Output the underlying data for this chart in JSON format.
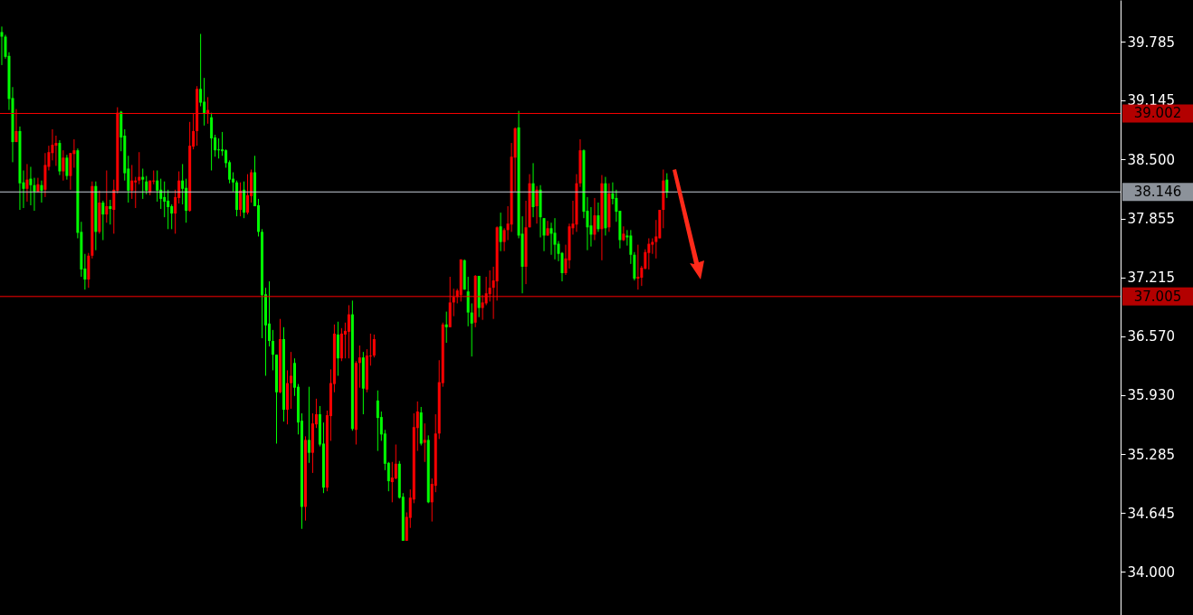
{
  "chart_data": {
    "type": "candlestick",
    "categories": [
      null,
      null,
      null,
      null,
      null,
      null,
      null,
      null,
      null,
      null,
      null,
      null,
      null,
      null,
      null,
      null,
      null,
      null,
      null,
      null,
      null,
      null,
      null,
      null,
      null,
      null,
      null,
      null,
      null,
      null,
      null,
      null,
      null,
      null,
      null,
      null,
      null,
      null,
      null,
      null,
      null,
      null,
      null,
      null,
      null,
      null,
      null,
      null,
      null,
      null,
      null,
      null,
      null,
      null,
      null,
      null,
      null,
      null,
      null,
      null,
      null,
      null,
      null,
      null,
      null,
      null,
      null,
      null,
      null,
      null,
      null,
      null,
      null,
      null,
      null,
      null,
      null,
      null,
      null,
      null,
      null,
      null,
      null,
      null,
      null,
      null,
      null,
      null,
      null,
      null,
      null,
      null,
      null,
      null,
      null,
      null,
      null,
      null,
      null,
      null,
      null,
      null,
      null,
      null,
      null,
      null,
      null,
      null,
      null,
      null,
      null,
      null,
      null,
      null,
      null,
      null,
      null,
      null,
      null,
      null,
      null,
      null,
      null,
      null,
      null,
      null,
      null,
      null,
      null,
      null,
      null,
      null,
      null,
      null,
      null,
      null,
      null,
      null,
      null,
      null,
      null,
      null,
      null,
      null,
      null,
      null,
      null,
      null,
      null,
      null,
      null,
      null,
      null,
      null,
      null,
      null,
      null,
      null,
      null,
      null,
      null,
      null,
      null,
      null,
      null,
      null,
      null,
      null,
      null,
      null,
      null,
      null,
      null,
      null,
      null,
      null,
      null,
      null,
      null,
      null,
      null,
      null,
      null,
      null,
      null,
      null,
      null,
      null,
      null,
      null,
      null,
      null,
      null,
      null,
      null,
      null,
      null,
      null,
      null,
      null,
      null,
      null,
      null,
      null,
      null,
      null,
      null,
      null,
      null,
      null,
      null,
      null,
      null,
      null,
      null,
      null,
      null,
      null,
      null,
      null,
      null,
      null,
      null,
      null,
      null,
      null,
      null,
      null,
      null,
      null,
      null,
      null,
      null,
      null,
      null,
      null,
      null,
      null,
      null,
      null,
      null,
      null,
      null,
      null,
      null,
      null,
      null,
      null,
      null,
      null,
      null,
      null,
      null,
      null,
      null,
      null,
      null,
      null,
      null,
      null,
      null,
      null,
      null,
      null,
      null,
      null,
      null,
      null,
      null,
      null,
      null,
      null,
      null,
      null,
      null,
      null,
      null,
      null,
      null,
      null,
      null,
      null,
      null,
      null,
      null,
      null,
      null,
      null,
      null,
      null,
      null,
      null,
      null,
      null,
      null,
      null,
      null,
      null,
      null,
      null,
      null,
      null,
      null,
      null,
      null,
      null,
      null,
      null,
      null,
      null
    ],
    "ohlc": [
      [
        39.89,
        39.95,
        39.53,
        39.84
      ],
      [
        39.84,
        39.86,
        39.6,
        39.62
      ],
      [
        39.63,
        39.67,
        39.04,
        39.16
      ],
      [
        39.17,
        39.29,
        38.47,
        38.69
      ],
      [
        38.69,
        39.05,
        38.69,
        38.81
      ],
      [
        38.81,
        38.86,
        37.95,
        38.24
      ],
      [
        38.25,
        38.38,
        37.97,
        38.18
      ],
      [
        38.18,
        38.45,
        38.04,
        38.28
      ],
      [
        38.29,
        38.42,
        38.0,
        38.22
      ],
      [
        38.22,
        38.3,
        37.94,
        38.15
      ],
      [
        38.15,
        38.3,
        38.14,
        38.23
      ],
      [
        38.22,
        38.27,
        38.03,
        38.16
      ],
      [
        38.17,
        38.57,
        38.09,
        38.44
      ],
      [
        38.42,
        38.65,
        38.38,
        38.58
      ],
      [
        38.57,
        38.83,
        38.49,
        38.66
      ],
      [
        38.65,
        38.76,
        38.43,
        38.68
      ],
      [
        38.68,
        38.71,
        38.33,
        38.37
      ],
      [
        38.37,
        38.6,
        38.27,
        38.52
      ],
      [
        38.52,
        38.55,
        38.28,
        38.32
      ],
      [
        38.32,
        38.57,
        38.17,
        38.57
      ],
      [
        38.56,
        38.72,
        38.41,
        38.6
      ],
      [
        38.6,
        38.62,
        37.64,
        37.7
      ],
      [
        37.71,
        37.82,
        37.22,
        37.3
      ],
      [
        37.31,
        37.47,
        37.08,
        37.19
      ],
      [
        37.19,
        37.48,
        37.1,
        37.45
      ],
      [
        37.45,
        38.26,
        37.42,
        38.21
      ],
      [
        38.21,
        38.26,
        37.51,
        37.71
      ],
      [
        37.71,
        38.16,
        37.69,
        38.03
      ],
      [
        38.03,
        38.05,
        37.62,
        37.9
      ],
      [
        37.9,
        38.38,
        37.81,
        37.99
      ],
      [
        37.99,
        38.06,
        37.79,
        37.96
      ],
      [
        37.95,
        38.28,
        37.69,
        38.17
      ],
      [
        38.16,
        39.07,
        38.13,
        39.01
      ],
      [
        39.02,
        39.03,
        38.59,
        38.74
      ],
      [
        38.76,
        38.83,
        38.27,
        38.35
      ],
      [
        38.4,
        38.54,
        38.03,
        38.16
      ],
      [
        38.16,
        38.44,
        38.07,
        38.27
      ],
      [
        38.25,
        38.31,
        37.97,
        38.27
      ],
      [
        38.27,
        38.58,
        38.23,
        38.31
      ],
      [
        38.31,
        38.4,
        38.07,
        38.28
      ],
      [
        38.26,
        38.32,
        38.12,
        38.16
      ],
      [
        38.14,
        38.27,
        38.11,
        38.27
      ],
      [
        38.26,
        38.38,
        38.23,
        38.27
      ],
      [
        38.27,
        38.38,
        38.04,
        38.16
      ],
      [
        38.17,
        38.29,
        37.96,
        38.07
      ],
      [
        38.09,
        38.26,
        37.87,
        38.04
      ],
      [
        38.05,
        38.17,
        37.74,
        37.98
      ],
      [
        37.99,
        38.01,
        37.74,
        37.91
      ],
      [
        37.91,
        38.17,
        37.69,
        38.09
      ],
      [
        38.08,
        38.37,
        38.02,
        38.27
      ],
      [
        38.27,
        38.45,
        38.01,
        38.18
      ],
      [
        38.19,
        38.29,
        37.81,
        37.94
      ],
      [
        37.94,
        38.91,
        37.93,
        38.65
      ],
      [
        38.64,
        39.0,
        38.61,
        38.81
      ],
      [
        38.81,
        39.3,
        38.65,
        39.27
      ],
      [
        39.27,
        39.87,
        39.08,
        39.12
      ],
      [
        39.13,
        39.39,
        38.87,
        39.0
      ],
      [
        39.0,
        39.18,
        38.89,
        39.04
      ],
      [
        38.96,
        39.01,
        38.38,
        38.73
      ],
      [
        38.74,
        38.77,
        38.53,
        38.6
      ],
      [
        38.61,
        38.73,
        38.51,
        38.6
      ],
      [
        38.61,
        38.8,
        38.54,
        38.59
      ],
      [
        38.6,
        38.61,
        38.41,
        38.46
      ],
      [
        38.47,
        38.49,
        38.24,
        38.28
      ],
      [
        38.29,
        38.36,
        38.15,
        38.25
      ],
      [
        38.25,
        38.27,
        37.88,
        37.95
      ],
      [
        37.95,
        38.25,
        37.88,
        38.16
      ],
      [
        38.17,
        38.26,
        37.86,
        37.92
      ],
      [
        37.92,
        38.34,
        37.9,
        38.11
      ],
      [
        38.1,
        38.39,
        38.03,
        38.36
      ],
      [
        38.36,
        38.54,
        37.99,
        37.99
      ],
      [
        38.0,
        38.07,
        37.66,
        37.71
      ],
      [
        37.71,
        37.74,
        36.55,
        37.02
      ],
      [
        37.03,
        37.1,
        36.14,
        36.69
      ],
      [
        36.71,
        37.17,
        36.46,
        36.52
      ],
      [
        36.52,
        36.64,
        36.2,
        36.37
      ],
      [
        36.37,
        36.37,
        35.4,
        35.96
      ],
      [
        35.96,
        36.76,
        35.95,
        36.54
      ],
      [
        36.54,
        36.67,
        35.64,
        35.77
      ],
      [
        35.77,
        36.2,
        35.61,
        36.06
      ],
      [
        36.06,
        36.4,
        35.78,
        36.14
      ],
      [
        36.28,
        36.33,
        35.92,
        36.01
      ],
      [
        36.02,
        36.05,
        35.5,
        35.63
      ],
      [
        35.65,
        35.73,
        34.47,
        34.71
      ],
      [
        34.71,
        35.48,
        34.56,
        35.44
      ],
      [
        35.44,
        36.02,
        35.19,
        35.3
      ],
      [
        35.3,
        35.73,
        35.08,
        35.62
      ],
      [
        35.61,
        35.89,
        35.57,
        35.72
      ],
      [
        35.72,
        35.81,
        35.37,
        35.39
      ],
      [
        35.4,
        35.63,
        34.86,
        34.92
      ],
      [
        34.92,
        35.76,
        34.88,
        35.71
      ],
      [
        35.7,
        36.21,
        35.43,
        36.06
      ],
      [
        36.05,
        36.7,
        35.96,
        36.6
      ],
      [
        36.59,
        36.73,
        36.14,
        36.33
      ],
      [
        36.33,
        36.66,
        36.3,
        36.6
      ],
      [
        36.59,
        36.72,
        36.33,
        36.63
      ],
      [
        36.62,
        36.91,
        36.33,
        36.81
      ],
      [
        36.81,
        36.96,
        35.54,
        35.56
      ],
      [
        35.55,
        36.3,
        35.39,
        36.28
      ],
      [
        36.28,
        36.47,
        36.01,
        36.34
      ],
      [
        36.34,
        36.4,
        35.72,
        36.0
      ],
      [
        35.99,
        36.43,
        35.96,
        36.36
      ],
      [
        36.35,
        36.6,
        36.25,
        36.36
      ],
      [
        36.36,
        36.59,
        36.34,
        36.54
      ],
      [
        35.87,
        35.98,
        35.32,
        35.68
      ],
      [
        35.69,
        35.75,
        35.43,
        35.5
      ],
      [
        35.51,
        35.55,
        35.11,
        35.18
      ],
      [
        35.19,
        35.2,
        34.88,
        34.99
      ],
      [
        34.98,
        35.2,
        34.76,
        35.03
      ],
      [
        35.02,
        35.39,
        35.01,
        35.18
      ],
      [
        35.18,
        35.21,
        34.8,
        34.81
      ],
      [
        34.82,
        34.86,
        34.34,
        34.34
      ],
      [
        34.34,
        34.65,
        34.34,
        34.6
      ],
      [
        34.59,
        34.9,
        34.48,
        34.81
      ],
      [
        34.79,
        35.73,
        34.75,
        35.58
      ],
      [
        35.57,
        35.86,
        35.32,
        35.75
      ],
      [
        35.74,
        35.8,
        35.38,
        35.4
      ],
      [
        35.41,
        35.62,
        35.2,
        35.44
      ],
      [
        35.44,
        35.49,
        34.75,
        34.76
      ],
      [
        34.76,
        35.02,
        34.55,
        34.96
      ],
      [
        34.94,
        35.72,
        34.87,
        35.51
      ],
      [
        35.51,
        36.31,
        35.45,
        36.07
      ],
      [
        36.06,
        36.72,
        36.02,
        36.7
      ],
      [
        36.7,
        36.84,
        36.5,
        36.67
      ],
      [
        36.67,
        37.22,
        36.67,
        36.94
      ],
      [
        36.94,
        37.09,
        36.79,
        37.0
      ],
      [
        37.0,
        37.09,
        36.93,
        37.07
      ],
      [
        37.02,
        37.41,
        36.95,
        37.41
      ],
      [
        37.4,
        37.41,
        37.08,
        37.08
      ],
      [
        37.06,
        37.22,
        36.68,
        36.83
      ],
      [
        36.83,
        36.93,
        36.35,
        36.71
      ],
      [
        36.72,
        37.24,
        36.67,
        37.23
      ],
      [
        37.23,
        37.23,
        36.78,
        36.88
      ],
      [
        36.88,
        37.02,
        36.75,
        36.94
      ],
      [
        36.93,
        37.22,
        36.91,
        37.04
      ],
      [
        37.03,
        37.29,
        36.95,
        37.1
      ],
      [
        37.1,
        37.33,
        36.76,
        37.18
      ],
      [
        37.17,
        37.77,
        36.96,
        37.76
      ],
      [
        37.77,
        37.92,
        37.5,
        37.6
      ],
      [
        37.6,
        37.75,
        37.5,
        37.73
      ],
      [
        37.73,
        37.99,
        37.62,
        37.8
      ],
      [
        37.79,
        38.68,
        37.71,
        38.53
      ],
      [
        38.52,
        38.85,
        38.15,
        38.84
      ],
      [
        38.85,
        39.03,
        37.64,
        37.67
      ],
      [
        37.69,
        37.88,
        37.04,
        37.33
      ],
      [
        37.33,
        38.05,
        37.14,
        37.76
      ],
      [
        37.76,
        38.34,
        37.76,
        38.24
      ],
      [
        38.24,
        38.46,
        37.87,
        37.98
      ],
      [
        37.99,
        38.21,
        37.8,
        38.17
      ],
      [
        38.17,
        38.22,
        37.65,
        37.87
      ],
      [
        37.86,
        37.86,
        37.5,
        37.67
      ],
      [
        37.67,
        37.83,
        37.67,
        37.75
      ],
      [
        37.75,
        37.81,
        37.46,
        37.69
      ],
      [
        37.7,
        37.86,
        37.41,
        37.57
      ],
      [
        37.58,
        37.61,
        37.39,
        37.47
      ],
      [
        37.48,
        37.49,
        37.17,
        37.26
      ],
      [
        37.26,
        37.57,
        37.24,
        37.42
      ],
      [
        37.4,
        37.8,
        37.31,
        37.77
      ],
      [
        37.75,
        38.05,
        37.68,
        37.8
      ],
      [
        37.79,
        38.34,
        37.71,
        38.24
      ],
      [
        38.24,
        38.72,
        38.2,
        38.6
      ],
      [
        38.6,
        38.61,
        37.86,
        37.93
      ],
      [
        37.94,
        38.09,
        37.51,
        37.76
      ],
      [
        37.78,
        37.98,
        37.55,
        37.68
      ],
      [
        37.68,
        38.08,
        37.62,
        37.89
      ],
      [
        37.89,
        38.03,
        37.71,
        37.74
      ],
      [
        37.74,
        38.33,
        37.4,
        38.24
      ],
      [
        38.24,
        38.31,
        37.67,
        37.75
      ],
      [
        37.76,
        38.24,
        37.71,
        38.13
      ],
      [
        38.13,
        38.25,
        38.01,
        38.07
      ],
      [
        38.08,
        38.17,
        37.82,
        37.93
      ],
      [
        37.94,
        37.94,
        37.53,
        37.62
      ],
      [
        37.62,
        37.77,
        37.61,
        37.69
      ],
      [
        37.67,
        37.73,
        37.56,
        37.65
      ],
      [
        37.67,
        37.73,
        37.36,
        37.46
      ],
      [
        37.46,
        37.49,
        37.18,
        37.2
      ],
      [
        37.2,
        37.57,
        37.08,
        37.22
      ],
      [
        37.21,
        37.34,
        37.12,
        37.32
      ],
      [
        37.31,
        37.52,
        37.3,
        37.49
      ],
      [
        37.48,
        37.64,
        37.3,
        37.58
      ],
      [
        37.57,
        37.64,
        37.47,
        37.6
      ],
      [
        37.6,
        37.84,
        37.42,
        37.66
      ],
      [
        37.64,
        37.95,
        37.64,
        37.95
      ],
      [
        37.95,
        38.39,
        37.75,
        38.27
      ],
      [
        38.28,
        38.35,
        38.08,
        38.14
      ],
      null,
      null,
      null,
      null,
      null,
      null,
      null,
      null,
      null,
      null,
      null,
      null,
      null,
      null,
      null,
      null,
      null,
      null,
      null,
      null,
      null,
      null,
      null,
      null,
      null,
      null,
      null,
      null,
      null,
      null,
      null,
      null,
      null,
      null,
      null,
      null,
      null,
      null,
      null,
      null,
      null,
      null,
      null,
      null,
      null,
      null,
      null,
      null,
      null,
      null,
      null,
      null,
      null,
      null,
      null,
      null,
      null,
      null,
      null,
      null,
      null,
      null,
      null,
      null,
      null,
      null,
      null,
      null,
      null,
      null,
      null,
      null,
      null,
      null,
      null,
      null,
      null,
      null,
      null,
      null,
      null,
      null,
      null,
      null,
      null,
      null,
      null,
      null,
      null,
      null,
      null,
      null,
      null,
      null,
      null,
      null,
      null,
      null,
      null,
      null,
      null,
      null,
      null,
      null,
      null,
      null,
      null,
      null,
      null,
      null,
      null,
      null,
      null,
      null,
      null,
      null,
      null,
      null,
      null,
      null,
      null,
      null,
      null,
      null,
      null
    ],
    "colors": [
      "#00ff00",
      "#00ff00",
      "#00ff00",
      "#00ff00",
      "#ff0000",
      "#00ff00",
      "#00ff00",
      "#ff0000",
      "#00ff00",
      "#00ff00",
      "#ff0000",
      "#00ff00",
      "#ff0000",
      "#ff0000",
      "#ff0000",
      "#ff0000",
      "#00ff00",
      "#ff0000",
      "#00ff00",
      "#ff0000",
      "#ff0000",
      "#00ff00",
      "#00ff00",
      "#00ff00",
      "#ff0000",
      "#ff0000",
      "#00ff00",
      "#ff0000",
      "#00ff00",
      "#ff0000",
      "#00ff00",
      "#ff0000",
      "#ff0000",
      "#00ff00",
      "#00ff00",
      "#00ff00",
      "#ff0000",
      "#ff0000",
      "#ff0000",
      "#00ff00",
      "#00ff00",
      "#ff0000",
      "#ff0000",
      "#00ff00",
      "#00ff00",
      "#00ff00",
      "#00ff00",
      "#00ff00",
      "#ff0000",
      "#ff0000",
      "#00ff00",
      "#00ff00",
      "#ff0000",
      "#ff0000",
      "#ff0000",
      "#00ff00",
      "#00ff00",
      "#ff0000",
      "#00ff00",
      "#00ff00",
      "#00ff00",
      "#00ff00",
      "#00ff00",
      "#00ff00",
      "#00ff00",
      "#00ff00",
      "#ff0000",
      "#00ff00",
      "#ff0000",
      "#ff0000",
      "#00ff00",
      "#00ff00",
      "#00ff00",
      "#00ff00",
      "#00ff00",
      "#00ff00",
      "#00ff00",
      "#ff0000",
      "#00ff00",
      "#ff0000",
      "#ff0000",
      "#00ff00",
      "#00ff00",
      "#00ff00",
      "#ff0000",
      "#00ff00",
      "#ff0000",
      "#ff0000",
      "#00ff00",
      "#00ff00",
      "#ff0000",
      "#ff0000",
      "#ff0000",
      "#00ff00",
      "#ff0000",
      "#ff0000",
      "#ff0000",
      "#00ff00",
      "#ff0000",
      "#ff0000",
      "#00ff00",
      "#ff0000",
      "#ff0000",
      "#ff0000",
      "#00ff00",
      "#00ff00",
      "#00ff00",
      "#00ff00",
      "#ff0000",
      "#ff0000",
      "#00ff00",
      "#00ff00",
      "#ff0000",
      "#ff0000",
      "#ff0000",
      "#ff0000",
      "#00ff00",
      "#ff0000",
      "#00ff00",
      "#ff0000",
      "#ff0000",
      "#ff0000",
      "#ff0000",
      "#00ff00",
      "#ff0000",
      "#ff0000",
      "#ff0000",
      "#ff0000",
      "#00ff00",
      "#00ff00",
      "#00ff00",
      "#ff0000",
      "#00ff00",
      "#ff0000",
      "#ff0000",
      "#ff0000",
      "#ff0000",
      "#ff0000",
      "#00ff00",
      "#ff0000",
      "#ff0000",
      "#ff0000",
      "#ff0000",
      "#00ff00",
      "#00ff00",
      "#ff0000",
      "#ff0000",
      "#00ff00",
      "#ff0000",
      "#00ff00",
      "#00ff00",
      "#ff0000",
      "#00ff00",
      "#00ff00",
      "#00ff00",
      "#00ff00",
      "#ff0000",
      "#ff0000",
      "#ff0000",
      "#ff0000",
      "#ff0000",
      "#00ff00",
      "#00ff00",
      "#00ff00",
      "#ff0000",
      "#00ff00",
      "#ff0000",
      "#00ff00",
      "#ff0000",
      "#00ff00",
      "#00ff00",
      "#00ff00",
      "#ff0000",
      "#00ff00",
      "#00ff00",
      "#00ff00",
      "#ff0000",
      "#ff0000",
      "#ff0000",
      "#ff0000",
      "#ff0000",
      "#ff0000",
      "#ff0000",
      "#ff0000",
      "#00ff00",
      null,
      null,
      null,
      null,
      null,
      null,
      null,
      null,
      null,
      null,
      null,
      null,
      null,
      null,
      null,
      null,
      null,
      null,
      null,
      null,
      null,
      null,
      null,
      null,
      null,
      null,
      null,
      null,
      null,
      null,
      null,
      null,
      null,
      null,
      null,
      null,
      null,
      null,
      null,
      null,
      null,
      null,
      null,
      null,
      null,
      null,
      null,
      null,
      null,
      null,
      null,
      null,
      null,
      null,
      null,
      null,
      null,
      null,
      null,
      null,
      null,
      null,
      null,
      null,
      null,
      null,
      null,
      null,
      null,
      null,
      null,
      null,
      null,
      null,
      null,
      null,
      null,
      null,
      null,
      null,
      null,
      null,
      null,
      null,
      null,
      null,
      null,
      null,
      null,
      null,
      null,
      null,
      null,
      null,
      null,
      null,
      null,
      null,
      null,
      null,
      null,
      null,
      null,
      null,
      null,
      null,
      null,
      null,
      null,
      null,
      null,
      null,
      null,
      null,
      null,
      null,
      null,
      null,
      null,
      null,
      null,
      null,
      null,
      null,
      null
    ],
    "ylim": [
      33.53,
      40.24
    ],
    "yticks": [
      {
        "value": 34,
        "label": "34.000"
      },
      34.645,
      35.285,
      {
        "value": 35.93,
        "label": "35.930"
      },
      {
        "value": 36.57,
        "label": "36.570"
      },
      37.215,
      37.855,
      {
        "value": 38.5,
        "label": "38.500"
      },
      39.145,
      39.785
    ],
    "ref_lines": [
      {
        "axis": "y",
        "value": 39.002,
        "label": "39.002",
        "color": "#ff0000"
      },
      {
        "axis": "y",
        "value": 38.146,
        "label": "38.146",
        "color": "#c8d0dc"
      },
      {
        "axis": "y",
        "value": 37.005,
        "label": "37.005",
        "color": "#ff0000"
      }
    ]
  }
}
